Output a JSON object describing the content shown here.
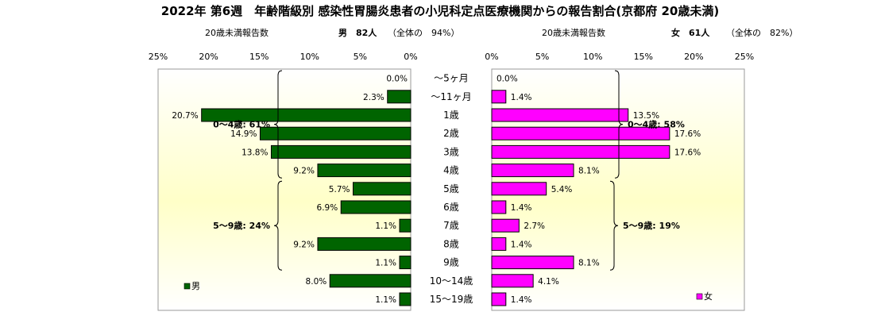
{
  "chart_data": {
    "type": "bar",
    "title": "2022年 第6週　年齢階級別 感染性胃腸炎患者の小児科定点医療機関からの報告割合(京都府 20歳未満)",
    "categories": [
      "～5ヶ月",
      "～11ヶ月",
      "1歳",
      "2歳",
      "3歳",
      "4歳",
      "5歳",
      "6歳",
      "7歳",
      "8歳",
      "9歳",
      "10～14歳",
      "15～19歳"
    ],
    "xlim": [
      0,
      25
    ],
    "ticks": [
      "25%",
      "20%",
      "15%",
      "10%",
      "5%",
      "0%"
    ],
    "ticks_right": [
      "0%",
      "5%",
      "10%",
      "15%",
      "20%",
      "25%"
    ],
    "series": [
      {
        "name": "男",
        "color": "#006400",
        "values": [
          0.0,
          2.3,
          20.7,
          14.9,
          13.8,
          9.2,
          5.7,
          6.9,
          1.1,
          9.2,
          1.1,
          8.0,
          1.1
        ],
        "labels": [
          "0.0%",
          "2.3%",
          "20.7%",
          "14.9%",
          "13.8%",
          "9.2%",
          "5.7%",
          "6.9%",
          "1.1%",
          "9.2%",
          "1.1%",
          "8.0%",
          "1.1%"
        ],
        "header_sub": "20歳未満報告数",
        "header_main": "男　82人",
        "header_pct": "（全体の　94%）",
        "groups": [
          {
            "label": "0～4歳: 61%",
            "from": 0,
            "to": 5
          },
          {
            "label": "5～9歳: 24%",
            "from": 6,
            "to": 10
          }
        ]
      },
      {
        "name": "女",
        "color": "#ff00ff",
        "values": [
          0.0,
          1.4,
          13.5,
          17.6,
          17.6,
          8.1,
          5.4,
          1.4,
          2.7,
          1.4,
          8.1,
          4.1,
          1.4
        ],
        "labels": [
          "0.0%",
          "1.4%",
          "13.5%",
          "17.6%",
          "17.6%",
          "8.1%",
          "5.4%",
          "1.4%",
          "2.7%",
          "1.4%",
          "8.1%",
          "4.1%",
          "1.4%"
        ],
        "header_sub": "20歳未満報告数",
        "header_main": "女　61人",
        "header_pct": "（全体の　82%）",
        "groups": [
          {
            "label": "0～4歳: 58%",
            "from": 0,
            "to": 5
          },
          {
            "label": "5～9歳: 19%",
            "from": 6,
            "to": 10
          }
        ]
      }
    ],
    "grid": false,
    "legend": "bottom-left / bottom-right"
  }
}
